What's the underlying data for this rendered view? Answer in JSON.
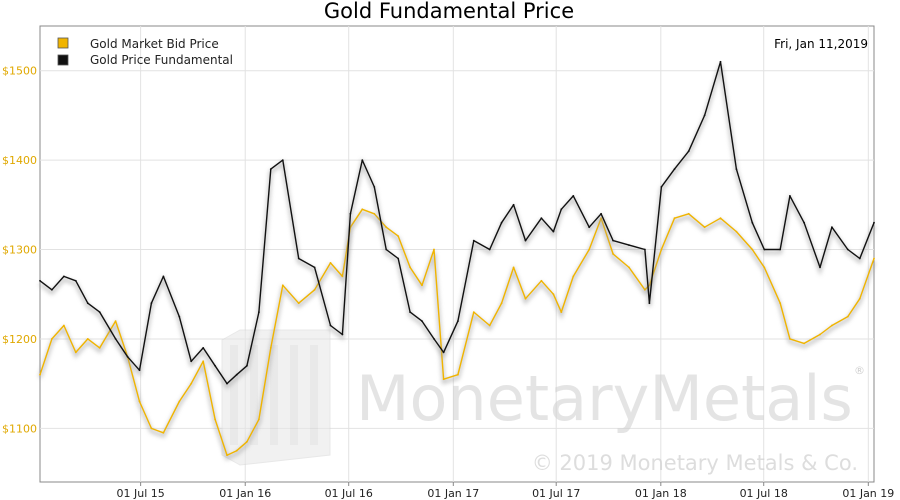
{
  "chart_data": {
    "type": "line",
    "title": "Gold Fundamental Price",
    "date_label": "Fri, Jan 11,2019",
    "xlabel": "",
    "ylabel": "",
    "ylim": [
      1040,
      1550
    ],
    "xlim": [
      "2015-01-05",
      "2019-01-11"
    ],
    "grid": true,
    "legend_position": "top-left",
    "y_ticks": [
      {
        "value": 1100,
        "label": "$1100"
      },
      {
        "value": 1200,
        "label": "$1200"
      },
      {
        "value": 1300,
        "label": "$1300"
      },
      {
        "value": 1400,
        "label": "$1400"
      },
      {
        "value": 1500,
        "label": "$1500"
      }
    ],
    "x_ticks": [
      {
        "value": "2015-07-01",
        "label": "01 Jul 15"
      },
      {
        "value": "2016-01-01",
        "label": "01 Jan 16"
      },
      {
        "value": "2016-07-01",
        "label": "01 Jul 16"
      },
      {
        "value": "2017-01-01",
        "label": "01 Jan 17"
      },
      {
        "value": "2017-07-01",
        "label": "01 Jul 17"
      },
      {
        "value": "2018-01-01",
        "label": "01 Jan 18"
      },
      {
        "value": "2018-07-01",
        "label": "01 Jul 18"
      },
      {
        "value": "2019-01-01",
        "label": "01 Jan 19"
      }
    ],
    "series": [
      {
        "name": "Gold Market Bid Price",
        "color": "#f0b400",
        "x": [
          "2015-01-05",
          "2015-01-26",
          "2015-02-16",
          "2015-03-09",
          "2015-03-30",
          "2015-04-20",
          "2015-05-18",
          "2015-06-08",
          "2015-06-29",
          "2015-07-20",
          "2015-08-10",
          "2015-09-07",
          "2015-09-28",
          "2015-10-19",
          "2015-11-09",
          "2015-11-30",
          "2015-12-17",
          "2016-01-04",
          "2016-01-25",
          "2016-02-15",
          "2016-03-07",
          "2016-04-04",
          "2016-05-02",
          "2016-05-30",
          "2016-06-20",
          "2016-07-04",
          "2016-07-25",
          "2016-08-15",
          "2016-09-05",
          "2016-09-26",
          "2016-10-17",
          "2016-11-07",
          "2016-11-28",
          "2016-12-15",
          "2017-01-09",
          "2017-02-06",
          "2017-03-06",
          "2017-03-27",
          "2017-04-17",
          "2017-05-08",
          "2017-06-05",
          "2017-06-26",
          "2017-07-10",
          "2017-07-31",
          "2017-08-28",
          "2017-09-18",
          "2017-10-09",
          "2017-11-06",
          "2017-12-04",
          "2017-12-12",
          "2018-01-02",
          "2018-01-25",
          "2018-02-19",
          "2018-03-19",
          "2018-04-16",
          "2018-05-14",
          "2018-06-11",
          "2018-07-02",
          "2018-07-30",
          "2018-08-16",
          "2018-09-10",
          "2018-10-08",
          "2018-10-29",
          "2018-11-26",
          "2018-12-17",
          "2019-01-11"
        ],
        "values": [
          1160,
          1200,
          1215,
          1185,
          1200,
          1190,
          1220,
          1180,
          1130,
          1100,
          1095,
          1130,
          1150,
          1175,
          1110,
          1070,
          1075,
          1085,
          1110,
          1190,
          1260,
          1240,
          1255,
          1285,
          1270,
          1325,
          1345,
          1340,
          1325,
          1315,
          1280,
          1260,
          1300,
          1155,
          1160,
          1230,
          1215,
          1240,
          1280,
          1245,
          1265,
          1250,
          1230,
          1270,
          1300,
          1335,
          1295,
          1280,
          1255,
          1260,
          1300,
          1335,
          1340,
          1325,
          1335,
          1320,
          1300,
          1280,
          1240,
          1200,
          1195,
          1205,
          1215,
          1225,
          1245,
          1290
        ]
      },
      {
        "name": "Gold Price Fundamental",
        "color": "#111111",
        "x": [
          "2015-01-05",
          "2015-01-26",
          "2015-02-16",
          "2015-03-09",
          "2015-03-30",
          "2015-04-20",
          "2015-05-18",
          "2015-06-08",
          "2015-06-29",
          "2015-07-20",
          "2015-08-10",
          "2015-09-07",
          "2015-09-28",
          "2015-10-19",
          "2015-11-09",
          "2015-11-30",
          "2015-12-17",
          "2016-01-04",
          "2016-01-25",
          "2016-02-15",
          "2016-03-07",
          "2016-04-04",
          "2016-05-02",
          "2016-05-30",
          "2016-06-20",
          "2016-07-04",
          "2016-07-25",
          "2016-08-15",
          "2016-09-05",
          "2016-09-26",
          "2016-10-17",
          "2016-11-07",
          "2016-11-28",
          "2016-12-15",
          "2017-01-09",
          "2017-02-06",
          "2017-03-06",
          "2017-03-27",
          "2017-04-17",
          "2017-05-08",
          "2017-06-05",
          "2017-06-26",
          "2017-07-10",
          "2017-07-31",
          "2017-08-28",
          "2017-09-18",
          "2017-10-09",
          "2017-11-06",
          "2017-12-04",
          "2017-12-12",
          "2018-01-02",
          "2018-01-25",
          "2018-02-19",
          "2018-03-19",
          "2018-04-16",
          "2018-05-14",
          "2018-06-11",
          "2018-07-02",
          "2018-07-30",
          "2018-08-16",
          "2018-09-10",
          "2018-10-08",
          "2018-10-29",
          "2018-11-26",
          "2018-12-17",
          "2019-01-11"
        ],
        "values": [
          1265,
          1255,
          1270,
          1265,
          1240,
          1230,
          1200,
          1180,
          1165,
          1240,
          1270,
          1225,
          1175,
          1190,
          1170,
          1150,
          1160,
          1170,
          1230,
          1390,
          1400,
          1290,
          1280,
          1215,
          1205,
          1340,
          1400,
          1370,
          1300,
          1290,
          1230,
          1220,
          1200,
          1185,
          1220,
          1310,
          1300,
          1330,
          1350,
          1310,
          1335,
          1320,
          1345,
          1360,
          1325,
          1340,
          1310,
          1305,
          1300,
          1240,
          1370,
          1390,
          1410,
          1450,
          1510,
          1390,
          1330,
          1300,
          1300,
          1360,
          1330,
          1280,
          1325,
          1300,
          1290,
          1330
        ]
      }
    ]
  },
  "watermark": {
    "brand": "MonetaryMetals",
    "registered": "®",
    "copyright": "© 2019 Monetary Metals & Co."
  }
}
